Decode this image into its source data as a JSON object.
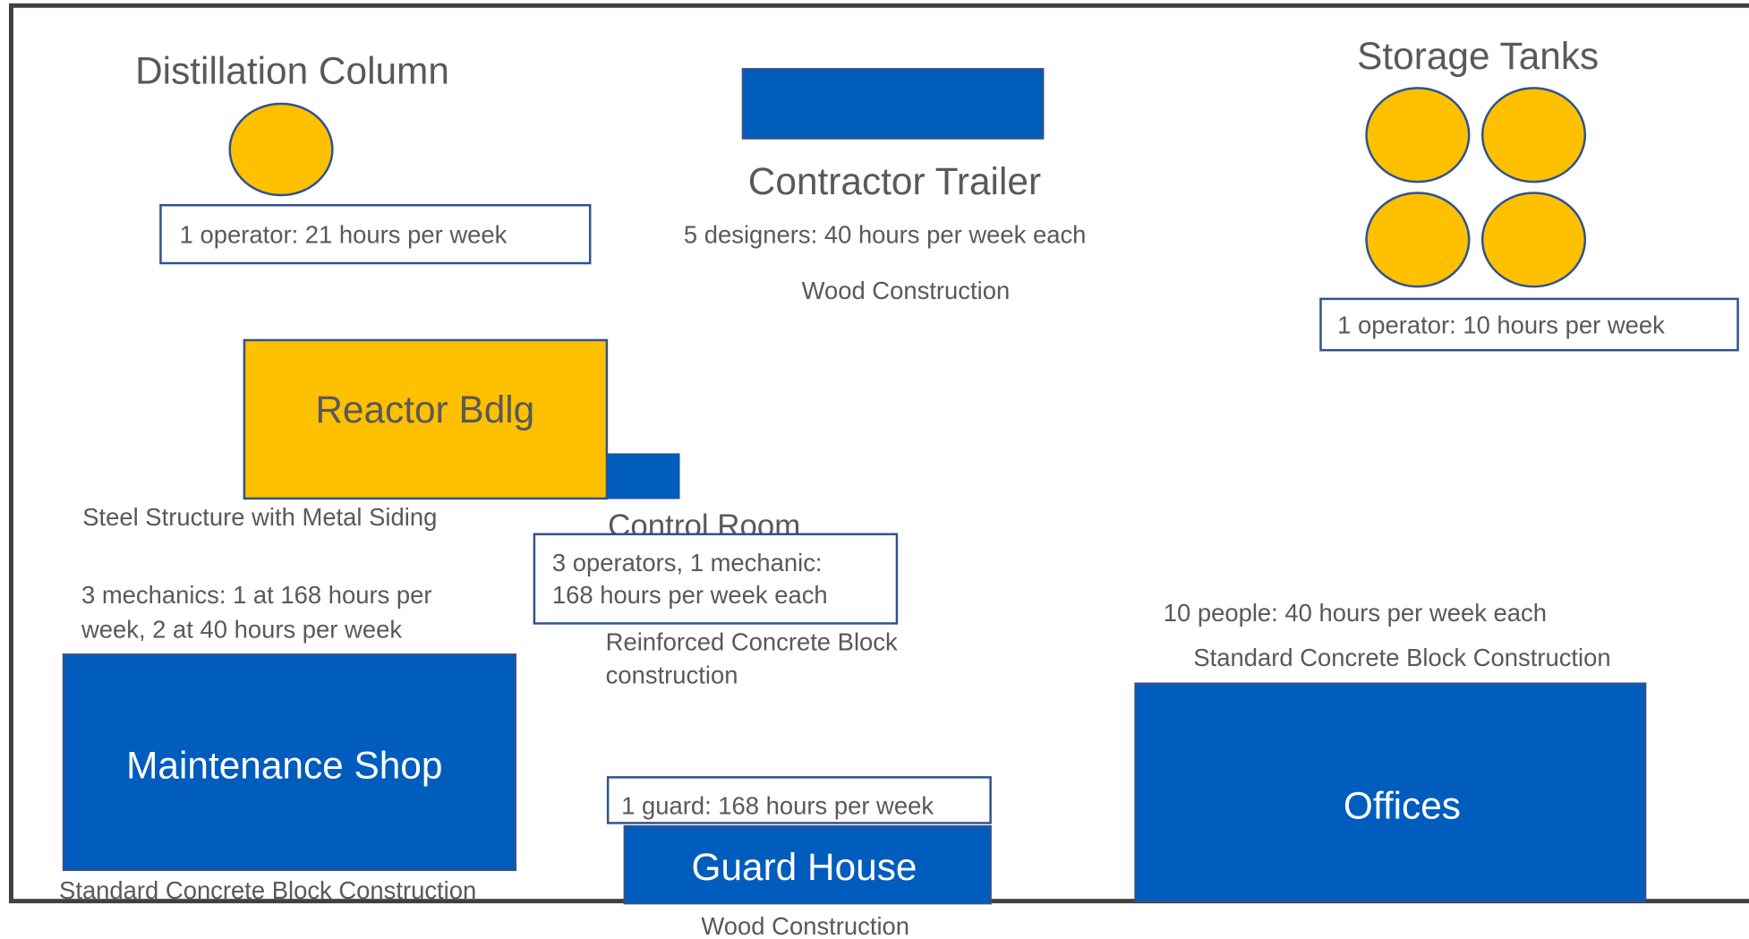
{
  "nodes": [
    {
      "label": "Distillation Column",
      "staffing": "1 operator: 21 hours per week"
    },
    {
      "label": "Contractor Trailer",
      "staffing": "5 designers: 40 hours per week each",
      "construction": "Wood Construction"
    },
    {
      "label": "Storage Tanks",
      "staffing": "1 operator: 10 hours per week"
    },
    {
      "label": "Reactor Bdlg",
      "construction": "Steel Structure with Metal Siding"
    },
    {
      "label": "Control Room",
      "staffing": [
        "3 operators, 1 mechanic:",
        "168 hours per week each"
      ],
      "construction": [
        "Reinforced Concrete Block",
        "construction"
      ]
    },
    {
      "label": "Maintenance Shop",
      "staffing": [
        "3 mechanics: 1 at 168 hours per",
        "week, 2 at 40 hours per week"
      ],
      "construction": "Standard Concrete Block Construction"
    },
    {
      "label": "Guard House",
      "staffing": "1 guard: 168 hours per week",
      "construction": "Wood Construction"
    },
    {
      "label": "Offices",
      "staffing": "10 people: 40 hours per week each",
      "construction": "Standard Concrete Block Construction"
    }
  ]
}
